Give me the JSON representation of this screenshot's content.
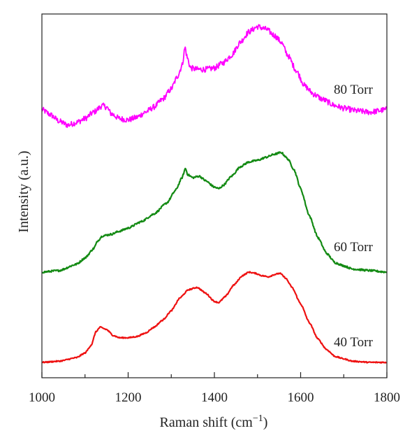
{
  "chart_data": {
    "type": "line",
    "xlabel": "Raman shift (cm",
    "xlabel_sup": "−1",
    "xlabel_close": ")",
    "ylabel": "Intensity (a.u.)",
    "xlim": [
      1000,
      1800
    ],
    "xticks": [
      "1000",
      "1200",
      "1400",
      "1600",
      "1800"
    ],
    "y_ticks_shown": false,
    "grid": false,
    "legend": "none (labels placed at right of each curve)",
    "series": [
      {
        "name": "80 Torr",
        "color": "#ff00ff",
        "noise": 0.022,
        "points": [
          [
            1000,
            0.18
          ],
          [
            1020,
            0.14
          ],
          [
            1040,
            0.09
          ],
          [
            1060,
            0.06
          ],
          [
            1080,
            0.08
          ],
          [
            1100,
            0.11
          ],
          [
            1120,
            0.16
          ],
          [
            1140,
            0.21
          ],
          [
            1150,
            0.2
          ],
          [
            1160,
            0.15
          ],
          [
            1180,
            0.11
          ],
          [
            1200,
            0.1
          ],
          [
            1220,
            0.12
          ],
          [
            1240,
            0.16
          ],
          [
            1260,
            0.2
          ],
          [
            1280,
            0.26
          ],
          [
            1300,
            0.34
          ],
          [
            1315,
            0.44
          ],
          [
            1325,
            0.52
          ],
          [
            1332,
            0.66
          ],
          [
            1337,
            0.58
          ],
          [
            1345,
            0.5
          ],
          [
            1360,
            0.49
          ],
          [
            1380,
            0.49
          ],
          [
            1400,
            0.5
          ],
          [
            1420,
            0.54
          ],
          [
            1440,
            0.6
          ],
          [
            1460,
            0.7
          ],
          [
            1480,
            0.78
          ],
          [
            1500,
            0.82
          ],
          [
            1520,
            0.8
          ],
          [
            1540,
            0.75
          ],
          [
            1555,
            0.7
          ],
          [
            1570,
            0.6
          ],
          [
            1590,
            0.48
          ],
          [
            1610,
            0.36
          ],
          [
            1630,
            0.3
          ],
          [
            1650,
            0.26
          ],
          [
            1680,
            0.21
          ],
          [
            1700,
            0.19
          ],
          [
            1730,
            0.17
          ],
          [
            1760,
            0.16
          ],
          [
            1800,
            0.18
          ]
        ]
      },
      {
        "name": "60 Torr",
        "color": "#138a13",
        "noise": 0.006,
        "points": [
          [
            1000,
            0.0
          ],
          [
            1040,
            0.01
          ],
          [
            1080,
            0.05
          ],
          [
            1100,
            0.09
          ],
          [
            1120,
            0.15
          ],
          [
            1130,
            0.2
          ],
          [
            1140,
            0.23
          ],
          [
            1160,
            0.24
          ],
          [
            1180,
            0.26
          ],
          [
            1200,
            0.28
          ],
          [
            1230,
            0.32
          ],
          [
            1260,
            0.37
          ],
          [
            1290,
            0.44
          ],
          [
            1310,
            0.52
          ],
          [
            1325,
            0.6
          ],
          [
            1333,
            0.66
          ],
          [
            1338,
            0.62
          ],
          [
            1350,
            0.6
          ],
          [
            1365,
            0.61
          ],
          [
            1380,
            0.58
          ],
          [
            1400,
            0.54
          ],
          [
            1410,
            0.53
          ],
          [
            1420,
            0.55
          ],
          [
            1440,
            0.61
          ],
          [
            1460,
            0.67
          ],
          [
            1480,
            0.7
          ],
          [
            1500,
            0.71
          ],
          [
            1520,
            0.73
          ],
          [
            1540,
            0.75
          ],
          [
            1555,
            0.76
          ],
          [
            1570,
            0.72
          ],
          [
            1585,
            0.65
          ],
          [
            1600,
            0.53
          ],
          [
            1620,
            0.36
          ],
          [
            1640,
            0.22
          ],
          [
            1660,
            0.12
          ],
          [
            1680,
            0.06
          ],
          [
            1700,
            0.04
          ],
          [
            1720,
            0.02
          ],
          [
            1760,
            0.01
          ],
          [
            1800,
            0.0
          ]
        ]
      },
      {
        "name": "40 Torr",
        "color": "#ee1111",
        "noise": 0.005,
        "points": [
          [
            1000,
            0.0
          ],
          [
            1040,
            0.01
          ],
          [
            1080,
            0.04
          ],
          [
            1100,
            0.08
          ],
          [
            1115,
            0.15
          ],
          [
            1125,
            0.26
          ],
          [
            1135,
            0.3
          ],
          [
            1150,
            0.28
          ],
          [
            1165,
            0.23
          ],
          [
            1180,
            0.21
          ],
          [
            1200,
            0.21
          ],
          [
            1220,
            0.22
          ],
          [
            1240,
            0.25
          ],
          [
            1260,
            0.3
          ],
          [
            1280,
            0.36
          ],
          [
            1300,
            0.44
          ],
          [
            1320,
            0.55
          ],
          [
            1340,
            0.62
          ],
          [
            1360,
            0.64
          ],
          [
            1380,
            0.59
          ],
          [
            1400,
            0.52
          ],
          [
            1410,
            0.51
          ],
          [
            1425,
            0.56
          ],
          [
            1445,
            0.66
          ],
          [
            1465,
            0.74
          ],
          [
            1480,
            0.77
          ],
          [
            1495,
            0.76
          ],
          [
            1510,
            0.74
          ],
          [
            1525,
            0.73
          ],
          [
            1540,
            0.75
          ],
          [
            1552,
            0.76
          ],
          [
            1565,
            0.72
          ],
          [
            1580,
            0.64
          ],
          [
            1600,
            0.5
          ],
          [
            1620,
            0.34
          ],
          [
            1640,
            0.2
          ],
          [
            1660,
            0.11
          ],
          [
            1680,
            0.05
          ],
          [
            1700,
            0.03
          ],
          [
            1720,
            0.01
          ],
          [
            1760,
            0.0
          ],
          [
            1800,
            0.0
          ]
        ]
      }
    ]
  }
}
